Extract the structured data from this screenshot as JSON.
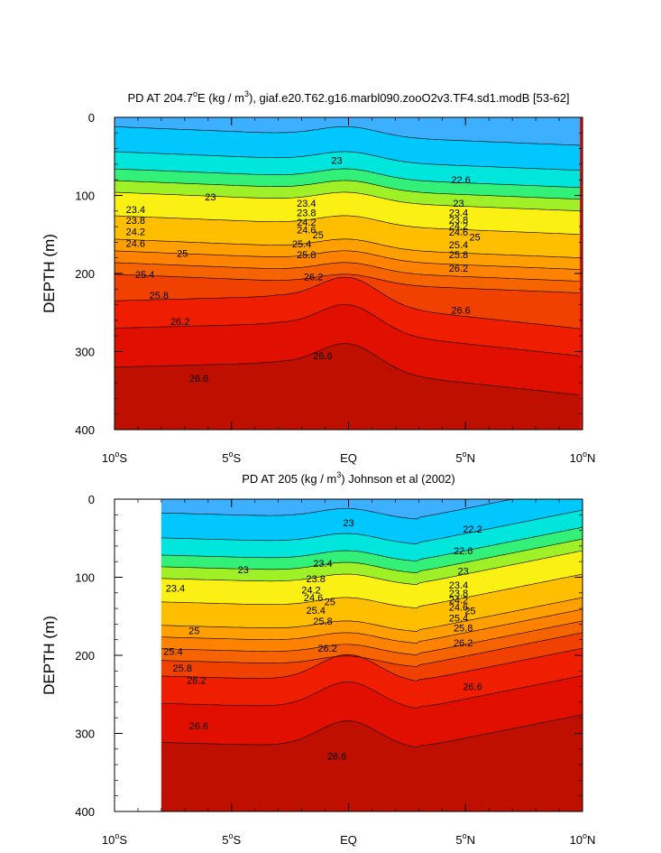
{
  "chart_data": [
    {
      "type": "heatmap",
      "title_prefix": "PD AT 204.7",
      "title_deg": "o",
      "title_mid": "E (kg / m",
      "title_sup": "3",
      "title_suffix": "), giaf.e20.T62.g16.marbl090.zooO2v3.TF4.sd1.modB [53-62]",
      "xlabel": "",
      "ylabel": "DEPTH (m)",
      "xlim": [
        -10,
        10
      ],
      "ylim": [
        400,
        0
      ],
      "data_xlim": [
        -10,
        10
      ],
      "x_ticks": [
        {
          "value": -10,
          "num": "10",
          "deg": "o",
          "hem": "S"
        },
        {
          "value": -5,
          "num": "5",
          "deg": "o",
          "hem": "S"
        },
        {
          "value": 0,
          "num": "EQ",
          "deg": "",
          "hem": ""
        },
        {
          "value": 5,
          "num": "5",
          "deg": "o",
          "hem": "N"
        },
        {
          "value": 10,
          "num": "10",
          "deg": "o",
          "hem": "N"
        }
      ],
      "y_ticks": [
        0,
        100,
        200,
        300,
        400
      ],
      "contour_levels": [
        22.2,
        22.6,
        23,
        23.2,
        23.4,
        23.6,
        23.8,
        24,
        24.2,
        24.4,
        24.6,
        24.8,
        25,
        25.2,
        25.4,
        25.6,
        25.8,
        26,
        26.2,
        26.4,
        26.6,
        26.8
      ],
      "contour_labels": [
        {
          "text": "23",
          "x": -5.9,
          "y": 102
        },
        {
          "text": "23",
          "x": -0.5,
          "y": 55
        },
        {
          "text": "22.6",
          "x": 4.8,
          "y": 80
        },
        {
          "text": "23.4",
          "x": -9.1,
          "y": 118
        },
        {
          "text": "23.8",
          "x": -9.1,
          "y": 132
        },
        {
          "text": "24.2",
          "x": -9.1,
          "y": 146
        },
        {
          "text": "24.6",
          "x": -9.1,
          "y": 161
        },
        {
          "text": "25",
          "x": -7.1,
          "y": 174
        },
        {
          "text": "25.4",
          "x": -8.7,
          "y": 201
        },
        {
          "text": "25.8",
          "x": -8.1,
          "y": 228
        },
        {
          "text": "26.2",
          "x": -7.2,
          "y": 261
        },
        {
          "text": "26.6",
          "x": -6.4,
          "y": 334
        },
        {
          "text": "23.4",
          "x": -1.8,
          "y": 110
        },
        {
          "text": "23.8",
          "x": -1.8,
          "y": 122
        },
        {
          "text": "24.2",
          "x": -1.8,
          "y": 134
        },
        {
          "text": "24.6",
          "x": -1.8,
          "y": 144
        },
        {
          "text": "25",
          "x": -1.3,
          "y": 150
        },
        {
          "text": "25.4",
          "x": -2.0,
          "y": 162
        },
        {
          "text": "25.8",
          "x": -1.8,
          "y": 176
        },
        {
          "text": "26.2",
          "x": -1.5,
          "y": 204
        },
        {
          "text": "26.6",
          "x": -1.1,
          "y": 305
        },
        {
          "text": "23",
          "x": 4.7,
          "y": 110
        },
        {
          "text": "23.4",
          "x": 4.7,
          "y": 122
        },
        {
          "text": "23.8",
          "x": 4.7,
          "y": 131
        },
        {
          "text": "24.2",
          "x": 4.7,
          "y": 139
        },
        {
          "text": "24.6",
          "x": 4.7,
          "y": 147
        },
        {
          "text": "25",
          "x": 5.4,
          "y": 153
        },
        {
          "text": "25.4",
          "x": 4.7,
          "y": 163
        },
        {
          "text": "25.8",
          "x": 4.7,
          "y": 176
        },
        {
          "text": "26.2",
          "x": 4.7,
          "y": 193
        },
        {
          "text": "26.6",
          "x": 4.8,
          "y": 247
        }
      ]
    },
    {
      "type": "heatmap",
      "title_prefix": "PD AT 205 (kg / m",
      "title_deg": "",
      "title_mid": "",
      "title_sup": "3",
      "title_suffix": ") Johnson et al (2002)",
      "xlabel": "",
      "ylabel": "DEPTH (m)",
      "xlim": [
        -10,
        10
      ],
      "ylim": [
        400,
        0
      ],
      "data_xlim": [
        -8,
        10
      ],
      "x_ticks": [
        {
          "value": -10,
          "num": "10",
          "deg": "o",
          "hem": "S"
        },
        {
          "value": -5,
          "num": "5",
          "deg": "o",
          "hem": "S"
        },
        {
          "value": 0,
          "num": "EQ",
          "deg": "",
          "hem": ""
        },
        {
          "value": 5,
          "num": "5",
          "deg": "o",
          "hem": "N"
        },
        {
          "value": 10,
          "num": "10",
          "deg": "o",
          "hem": "N"
        }
      ],
      "y_ticks": [
        0,
        100,
        200,
        300,
        400
      ],
      "contour_levels": [
        22.2,
        22.6,
        23,
        23.2,
        23.4,
        23.6,
        23.8,
        24,
        24.2,
        24.4,
        24.6,
        24.8,
        25,
        25.2,
        25.4,
        25.6,
        25.8,
        26,
        26.2,
        26.4,
        26.6,
        26.8
      ],
      "contour_labels": [
        {
          "text": "22.2",
          "x": 5.3,
          "y": 38
        },
        {
          "text": "22.6",
          "x": 4.9,
          "y": 66
        },
        {
          "text": "23",
          "x": 4.9,
          "y": 92
        },
        {
          "text": "23",
          "x": -4.5,
          "y": 90
        },
        {
          "text": "23",
          "x": 0.0,
          "y": 30
        },
        {
          "text": "23.4",
          "x": -7.4,
          "y": 114
        },
        {
          "text": "23.4",
          "x": -1.1,
          "y": 82
        },
        {
          "text": "23.8",
          "x": -1.4,
          "y": 102
        },
        {
          "text": "24.2",
          "x": -1.6,
          "y": 116
        },
        {
          "text": "24.6",
          "x": -1.5,
          "y": 126
        },
        {
          "text": "25",
          "x": -0.8,
          "y": 131
        },
        {
          "text": "25.4",
          "x": -1.4,
          "y": 142
        },
        {
          "text": "25.8",
          "x": -1.1,
          "y": 156
        },
        {
          "text": "26.2",
          "x": -0.9,
          "y": 191
        },
        {
          "text": "26.6",
          "x": -0.5,
          "y": 329
        },
        {
          "text": "23.4",
          "x": 4.7,
          "y": 110
        },
        {
          "text": "23.8",
          "x": 4.7,
          "y": 120
        },
        {
          "text": "24.2",
          "x": 4.7,
          "y": 129
        },
        {
          "text": "24.6",
          "x": 4.7,
          "y": 138
        },
        {
          "text": "25",
          "x": 5.2,
          "y": 143
        },
        {
          "text": "25.4",
          "x": 4.7,
          "y": 152
        },
        {
          "text": "25.8",
          "x": 4.9,
          "y": 165
        },
        {
          "text": "26.2",
          "x": 4.9,
          "y": 184
        },
        {
          "text": "26.6",
          "x": 5.3,
          "y": 240
        },
        {
          "text": "25",
          "x": -6.6,
          "y": 168
        },
        {
          "text": "25.4",
          "x": -7.5,
          "y": 195
        },
        {
          "text": "25.8",
          "x": -7.1,
          "y": 216
        },
        {
          "text": "26.2",
          "x": -6.5,
          "y": 232
        },
        {
          "text": "26.6",
          "x": -6.4,
          "y": 290
        }
      ]
    }
  ]
}
